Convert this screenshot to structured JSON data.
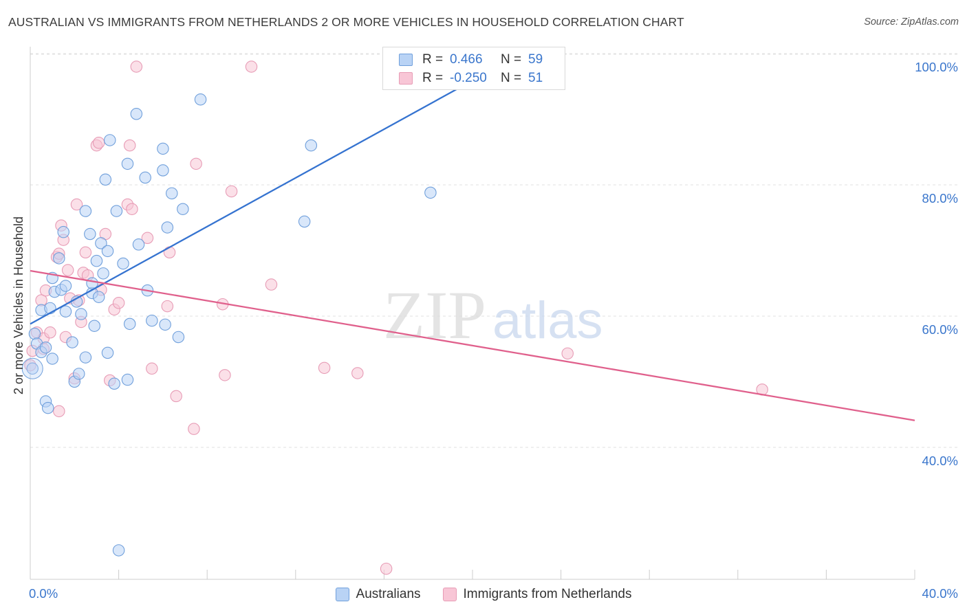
{
  "title": "AUSTRALIAN VS IMMIGRANTS FROM NETHERLANDS 2 OR MORE VEHICLES IN HOUSEHOLD CORRELATION CHART",
  "source": "Source: ZipAtlas.com",
  "watermark": {
    "zip": "ZIP",
    "atlas": "atlas"
  },
  "legend": {
    "r_label": "R =",
    "n_label": "N =",
    "series": [
      {
        "r": "0.466",
        "n": "59"
      },
      {
        "r": "-0.250",
        "n": "51"
      }
    ]
  },
  "colors": {
    "blue_fill": "#b9d3f5",
    "blue_stroke": "#6f9fdb",
    "blue_line": "#3573d0",
    "pink_fill": "#f8c6d6",
    "pink_stroke": "#e79bb5",
    "pink_line": "#e0608c",
    "axis_text": "#3a76cc",
    "grid": "#e2e2e2"
  },
  "chart_data": {
    "type": "scatter",
    "title": "AUSTRALIAN VS IMMIGRANTS FROM NETHERLANDS 2 OR MORE VEHICLES IN HOUSEHOLD CORRELATION CHART",
    "xlabel": "",
    "ylabel": "2 or more Vehicles in Household",
    "xlim": [
      0,
      40
    ],
    "ylim": [
      20,
      101
    ],
    "x_tick_labels": [
      "0.0%",
      "40.0%"
    ],
    "y_ticks": [
      40,
      60,
      80,
      100
    ],
    "y_tick_labels": [
      "40.0%",
      "60.0%",
      "80.0%",
      "100.0%"
    ],
    "series": [
      {
        "name": "Australians",
        "r": 0.466,
        "n": 59,
        "trend": {
          "x": [
            0.0,
            19.9
          ],
          "y": [
            60.8,
            97.7
          ]
        },
        "points": [
          [
            0.2,
            59.3
          ],
          [
            0.3,
            57.8
          ],
          [
            0.5,
            56.5
          ],
          [
            0.7,
            57.2
          ],
          [
            0.7,
            49.0
          ],
          [
            0.8,
            48.0
          ],
          [
            0.5,
            62.9
          ],
          [
            1.0,
            55.5
          ],
          [
            1.1,
            65.7
          ],
          [
            1.0,
            67.8
          ],
          [
            1.3,
            70.8
          ],
          [
            1.4,
            66.0
          ],
          [
            1.5,
            74.8
          ],
          [
            1.6,
            62.7
          ],
          [
            1.6,
            66.6
          ],
          [
            2.0,
            52.0
          ],
          [
            2.2,
            53.2
          ],
          [
            2.3,
            62.3
          ],
          [
            2.5,
            78.0
          ],
          [
            2.5,
            55.7
          ],
          [
            2.7,
            74.5
          ],
          [
            2.8,
            65.5
          ],
          [
            2.8,
            67.0
          ],
          [
            3.0,
            70.4
          ],
          [
            3.1,
            64.9
          ],
          [
            3.2,
            73.1
          ],
          [
            3.4,
            82.8
          ],
          [
            3.5,
            71.9
          ],
          [
            3.5,
            56.4
          ],
          [
            3.6,
            88.8
          ],
          [
            3.8,
            51.7
          ],
          [
            3.9,
            78.0
          ],
          [
            4.0,
            26.3
          ],
          [
            4.4,
            85.2
          ],
          [
            4.4,
            52.3
          ],
          [
            4.5,
            60.8
          ],
          [
            4.8,
            92.8
          ],
          [
            4.9,
            72.9
          ],
          [
            5.2,
            83.1
          ],
          [
            5.3,
            65.9
          ],
          [
            5.5,
            61.3
          ],
          [
            6.0,
            84.2
          ],
          [
            6.0,
            87.5
          ],
          [
            6.1,
            60.7
          ],
          [
            6.2,
            75.5
          ],
          [
            6.4,
            80.7
          ],
          [
            6.7,
            58.8
          ],
          [
            6.9,
            78.3
          ],
          [
            7.7,
            95.0
          ],
          [
            12.4,
            76.4
          ],
          [
            12.7,
            88.0
          ],
          [
            18.1,
            80.8
          ],
          [
            0.1,
            54.0
          ],
          [
            2.1,
            64.2
          ],
          [
            2.9,
            60.5
          ],
          [
            1.9,
            58.0
          ],
          [
            3.3,
            68.5
          ],
          [
            0.9,
            63.2
          ],
          [
            4.2,
            70.0
          ]
        ]
      },
      {
        "name": "Immigrants from Netherlands",
        "r": -0.25,
        "n": 51,
        "trend": {
          "x": [
            0.0,
            40.0
          ],
          "y": [
            68.9,
            46.1
          ]
        },
        "points": [
          [
            0.0,
            54.5
          ],
          [
            0.1,
            56.7
          ],
          [
            0.3,
            59.5
          ],
          [
            0.5,
            64.4
          ],
          [
            0.6,
            58.6
          ],
          [
            0.6,
            57.0
          ],
          [
            0.7,
            65.9
          ],
          [
            0.9,
            59.5
          ],
          [
            1.2,
            71.0
          ],
          [
            1.3,
            71.5
          ],
          [
            1.3,
            47.5
          ],
          [
            1.4,
            75.8
          ],
          [
            1.5,
            73.6
          ],
          [
            1.6,
            58.8
          ],
          [
            1.7,
            69.0
          ],
          [
            1.8,
            64.7
          ],
          [
            2.0,
            52.5
          ],
          [
            2.1,
            79.0
          ],
          [
            2.2,
            64.4
          ],
          [
            2.3,
            61.1
          ],
          [
            2.4,
            68.6
          ],
          [
            2.5,
            71.7
          ],
          [
            2.6,
            68.2
          ],
          [
            3.0,
            88.0
          ],
          [
            3.1,
            88.4
          ],
          [
            3.2,
            66.0
          ],
          [
            3.4,
            74.5
          ],
          [
            3.6,
            52.2
          ],
          [
            3.8,
            63.0
          ],
          [
            4.0,
            64.0
          ],
          [
            4.4,
            79.0
          ],
          [
            4.5,
            88.0
          ],
          [
            4.6,
            78.3
          ],
          [
            4.8,
            100.0
          ],
          [
            5.3,
            73.9
          ],
          [
            5.5,
            54.0
          ],
          [
            6.3,
            71.7
          ],
          [
            6.6,
            49.8
          ],
          [
            6.2,
            63.5
          ],
          [
            7.4,
            44.8
          ],
          [
            7.5,
            85.2
          ],
          [
            8.7,
            63.8
          ],
          [
            8.8,
            53.0
          ],
          [
            9.1,
            81.0
          ],
          [
            10.0,
            100.0
          ],
          [
            10.9,
            66.8
          ],
          [
            13.3,
            54.1
          ],
          [
            14.8,
            53.3
          ],
          [
            16.1,
            23.5
          ],
          [
            24.3,
            56.3
          ],
          [
            33.1,
            50.8
          ]
        ]
      }
    ]
  }
}
